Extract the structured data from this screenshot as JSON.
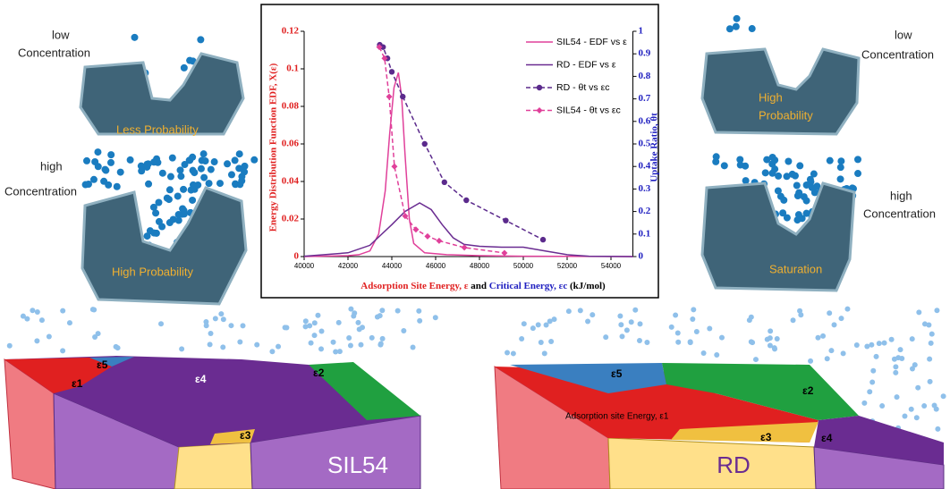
{
  "chart_data": {
    "type": "line",
    "xlabel_parts": [
      "Adsorption Site Energy, ε",
      " and ",
      "Critical Energy, εc",
      " (kJ/mol)"
    ],
    "ylabel": "Energy Distribution Function EDF, X(ε)",
    "y2label": "Uptake Ratio, θt",
    "xlim": [
      40000,
      55000
    ],
    "xticks": [
      40000,
      42000,
      44000,
      46000,
      48000,
      50000,
      52000,
      54000
    ],
    "ylim": [
      0,
      0.12
    ],
    "yticks": [
      0,
      0.02,
      0.04,
      0.06,
      0.08,
      0.1,
      0.12
    ],
    "y2lim": [
      0,
      1
    ],
    "y2ticks": [
      0,
      0.1,
      0.2,
      0.3,
      0.4,
      0.5,
      0.6,
      0.7,
      0.8,
      0.9,
      1
    ],
    "legend": "top-right",
    "series": [
      {
        "name": "SIL54 - EDF vs ε",
        "color": "#e0409a",
        "dash": false,
        "marker": "none",
        "x": [
          40000,
          42000,
          42500,
          43000,
          43400,
          43700,
          43900,
          44100,
          44300,
          44450,
          44600,
          44800,
          45000,
          45500,
          46500,
          48000,
          50000,
          55000
        ],
        "values": [
          0,
          0.0005,
          0.001,
          0.003,
          0.012,
          0.035,
          0.065,
          0.09,
          0.098,
          0.085,
          0.055,
          0.02,
          0.007,
          0.002,
          0.001,
          0.0005,
          0.0002,
          0
        ]
      },
      {
        "name": "RD - EDF vs ε",
        "color": "#6a2c91",
        "dash": false,
        "marker": "none",
        "x": [
          40000,
          42000,
          43000,
          44000,
          44600,
          45270,
          45800,
          46300,
          46800,
          47300,
          48000,
          49000,
          50000,
          51000,
          52000,
          53000,
          55000
        ],
        "values": [
          0.0002,
          0.002,
          0.006,
          0.017,
          0.024,
          0.0286,
          0.025,
          0.017,
          0.01,
          0.0065,
          0.0055,
          0.005,
          0.005,
          0.003,
          0.001,
          0.0002,
          0
        ]
      },
      {
        "name": "RD - θt vs εc",
        "color": "#5b2a8c",
        "axis": "y2",
        "dash": true,
        "marker": "circle",
        "x": [
          43450,
          43600,
          43800,
          44000,
          44500,
          45500,
          46400,
          47400,
          49200,
          50900
        ],
        "values": [
          0.94,
          0.93,
          0.88,
          0.82,
          0.71,
          0.5,
          0.33,
          0.25,
          0.16,
          0.075
        ]
      },
      {
        "name": "SIL54 - θt vs εc",
        "color": "#e0409a",
        "axis": "y2",
        "dash": true,
        "marker": "diamond",
        "x": [
          43430,
          43670,
          43880,
          44120,
          44610,
          45100,
          45630,
          46160,
          47310,
          49140
        ],
        "values": [
          0.93,
          0.88,
          0.71,
          0.4,
          0.18,
          0.12,
          0.09,
          0.07,
          0.04,
          0.016
        ]
      }
    ]
  },
  "illustrations": {
    "top_left": {
      "low_label": [
        "low",
        "Concentration"
      ],
      "low_note": "Less Probability",
      "high_label": [
        "high",
        "Concentration"
      ],
      "high_note": "High Probability"
    },
    "top_right": {
      "low_label": [
        "low",
        "Concentration"
      ],
      "low_note": [
        "High",
        "Probability"
      ],
      "high_label": [
        "high",
        "Concentration"
      ],
      "high_note": "Saturation"
    },
    "sil54": {
      "name": "SIL54",
      "regions": [
        "ε1",
        "ε2",
        "ε3",
        "ε4",
        "ε5"
      ]
    },
    "rd": {
      "name": "RD",
      "regions": [
        "Adsorption site Energy, ε1",
        "ε2",
        "ε3",
        "ε4",
        "ε5"
      ]
    }
  }
}
